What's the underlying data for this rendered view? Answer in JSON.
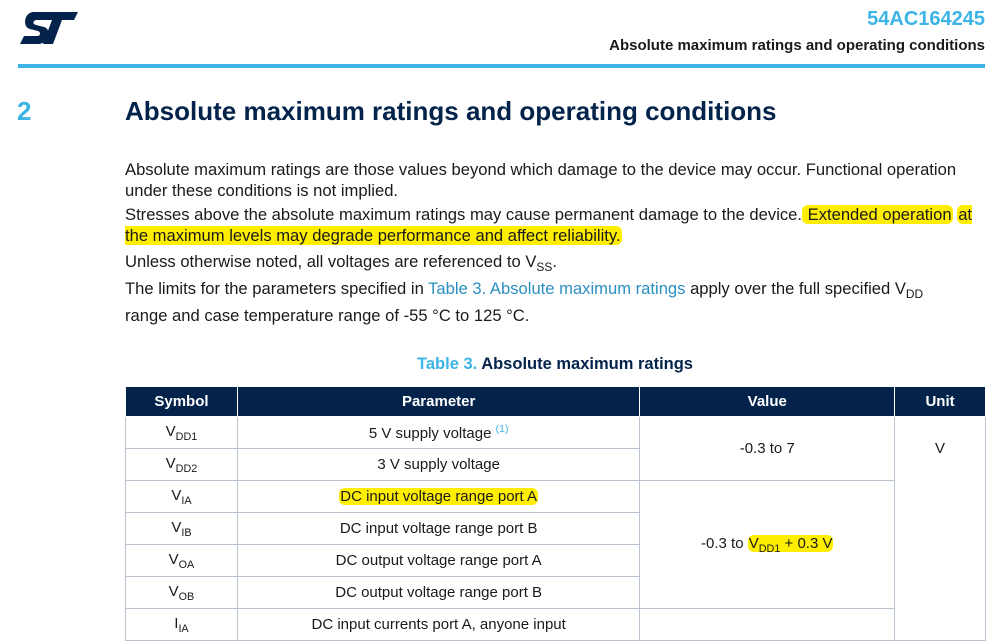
{
  "header": {
    "doc_id": "54AC164245",
    "subtitle": "Absolute maximum ratings and operating conditions"
  },
  "section": {
    "number": "2",
    "title": "Absolute maximum ratings and operating conditions"
  },
  "paragraphs": {
    "p1": "Absolute maximum ratings are those values beyond which damage to the device may occur. Functional operation under these conditions is not implied.",
    "p2_a": "Stresses above the absolute maximum ratings may cause permanent damage to the device.",
    "p2_hl1": " Extended operation",
    "p2_hl2": "at the maximum levels may degrade performance and affect reliability.",
    "p3_a": "Unless otherwise noted, all voltages are referenced to V",
    "p3_sub": "SS",
    "p3_b": ".",
    "p4_a": "The limits for the parameters specified in ",
    "p4_link": "Table 3. Absolute maximum ratings",
    "p4_b": " apply over the full specified V",
    "p4_sub": "DD",
    "p4_c": "range and case temperature range of -55 °C to 125 °C."
  },
  "table": {
    "caption_label": "Table 3.",
    "caption_title": " Absolute maximum ratings",
    "headers": [
      "Symbol",
      "Parameter",
      "Value",
      "Unit"
    ],
    "rows": [
      {
        "sym": "V",
        "sub": "DD1",
        "param": "5 V supply voltage ",
        "note": "(1)"
      },
      {
        "sym": "V",
        "sub": "DD2",
        "param": "3 V supply voltage"
      },
      {
        "sym": "V",
        "sub": "IA",
        "param": "DC input voltage range port A"
      },
      {
        "sym": "V",
        "sub": "IB",
        "param": "DC input voltage range port B"
      },
      {
        "sym": "V",
        "sub": "OA",
        "param": "DC output voltage range port A"
      },
      {
        "sym": "V",
        "sub": "OB",
        "param": "DC output voltage range port B"
      },
      {
        "sym": "I",
        "sub": "IA",
        "param": "DC input currents port A, anyone input"
      }
    ],
    "value_1": "-0.3 to 7",
    "value_2_a": "-0.3 to ",
    "value_2_v": "V",
    "value_2_sub": "DD1",
    "value_2_b": " + 0.3 V",
    "unit": "V"
  },
  "colors": {
    "accent": "#3cb4e6",
    "navy": "#03234b",
    "highlight": "#ffee00",
    "link": "#2b8fc1"
  },
  "icons": [
    "st-logo"
  ]
}
